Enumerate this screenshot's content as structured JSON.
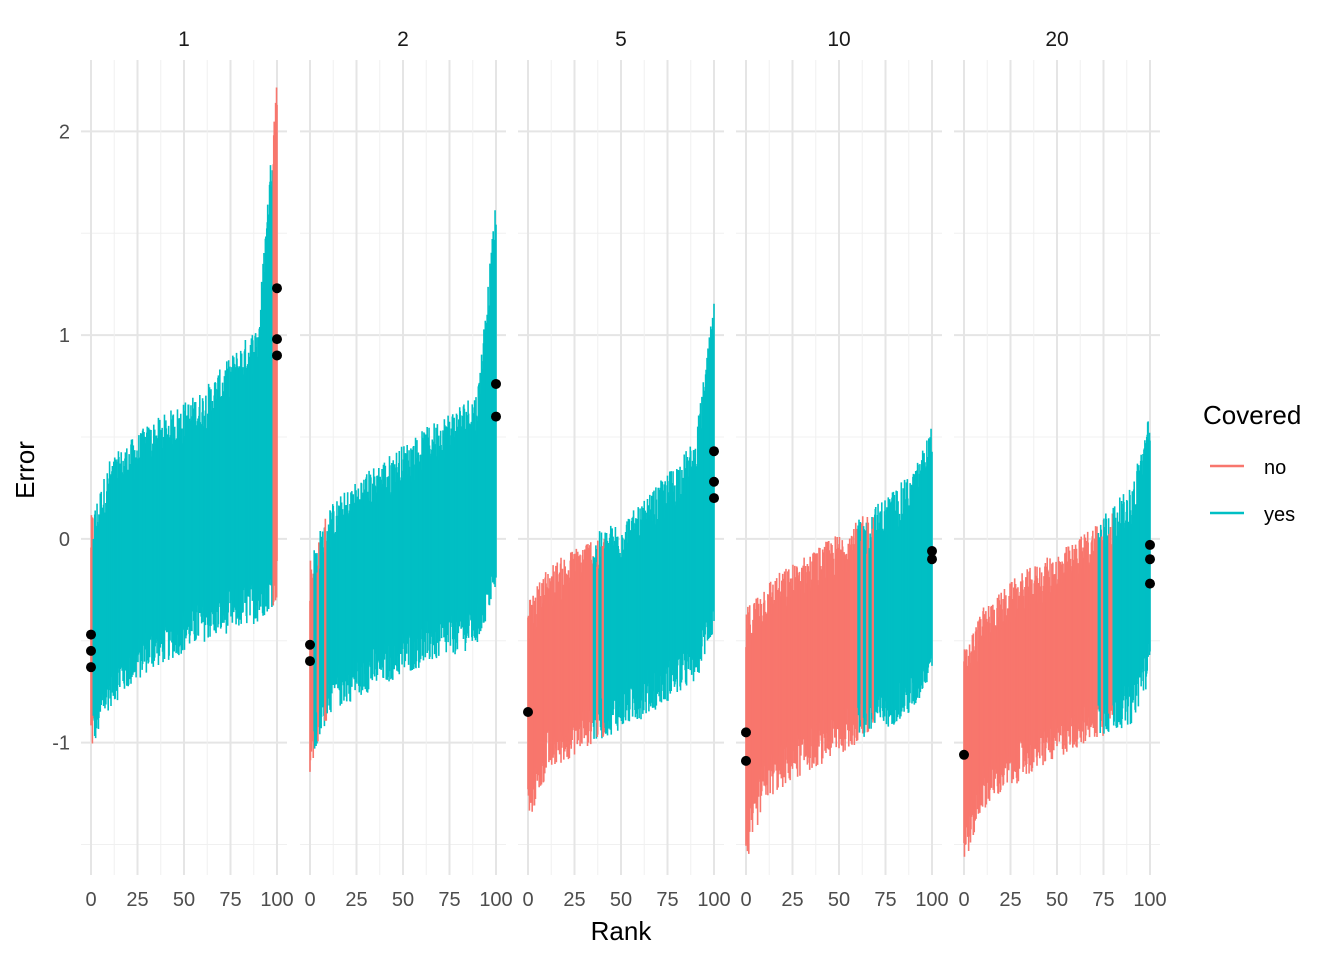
{
  "chart_data": {
    "type": "line",
    "xlabel": "Rank",
    "ylabel": "Error",
    "facets": [
      "1",
      "2",
      "5",
      "10",
      "20"
    ],
    "xlim": [
      0,
      100
    ],
    "ylim": [
      -1.65,
      2.35
    ],
    "x_ticks": [
      "0",
      "25",
      "50",
      "75",
      "100"
    ],
    "y_ticks": [
      "-1",
      "0",
      "1",
      "2"
    ],
    "grid": true,
    "legend": {
      "title": "Covered",
      "position": "right",
      "entries": [
        {
          "label": "no",
          "color": "#F8766D"
        },
        {
          "label": "yes",
          "color": "#00BFC4"
        }
      ]
    },
    "series_description": "Per-rank error intervals (lower, upper) coloured by coverage; black points mark point estimates at extreme ranks.",
    "panels": [
      {
        "facet": "1",
        "lower": [
          -0.95,
          -0.72,
          -0.55,
          -0.4,
          -0.3,
          -0.2
        ],
        "upper": [
          0.0,
          0.28,
          0.45,
          0.62,
          0.95,
          2.18
        ],
        "at_rank": [
          0,
          10,
          30,
          60,
          90,
          100
        ],
        "no_ranges": [
          [
            0,
            1
          ],
          [
            98,
            100
          ]
        ],
        "points": [
          -0.63,
          -0.55,
          -0.47,
          0.9,
          0.98,
          1.23
        ]
      },
      {
        "facet": "2",
        "lower": [
          -1.05,
          -0.75,
          -0.65,
          -0.52,
          -0.42,
          -0.15
        ],
        "upper": [
          -0.2,
          0.05,
          0.22,
          0.42,
          0.62,
          1.55
        ],
        "at_rank": [
          0,
          10,
          30,
          60,
          90,
          100
        ],
        "no_ranges": [
          [
            0,
            2
          ],
          [
            4,
            5
          ],
          [
            8,
            9
          ]
        ],
        "points": [
          -0.6,
          -0.52,
          0.6,
          0.76
        ]
      },
      {
        "facet": "5",
        "lower": [
          -1.3,
          -1.05,
          -0.92,
          -0.78,
          -0.6,
          -0.35
        ],
        "upper": [
          -0.42,
          -0.25,
          -0.12,
          0.05,
          0.38,
          1.05
        ],
        "at_rank": [
          0,
          10,
          30,
          60,
          90,
          100
        ],
        "no_ranges": [
          [
            0,
            35
          ],
          [
            37,
            38
          ],
          [
            40,
            41
          ]
        ],
        "points": [
          -0.85,
          0.2,
          0.28,
          0.43
        ]
      },
      {
        "facet": "10",
        "lower": [
          -1.5,
          -1.18,
          -1.05,
          -0.9,
          -0.75,
          -0.55
        ],
        "upper": [
          -0.45,
          -0.32,
          -0.2,
          -0.02,
          0.22,
          0.45
        ],
        "at_rank": [
          0,
          10,
          30,
          60,
          90,
          100
        ],
        "no_ranges": [
          [
            0,
            60
          ],
          [
            62,
            63
          ],
          [
            65,
            66
          ],
          [
            68,
            69
          ]
        ],
        "points": [
          -1.09,
          -0.95,
          -0.1,
          -0.06
        ]
      },
      {
        "facet": "20",
        "lower": [
          -1.5,
          -1.22,
          -1.08,
          -0.92,
          -0.8,
          -0.58
        ],
        "upper": [
          -0.65,
          -0.45,
          -0.28,
          -0.12,
          0.15,
          0.52
        ],
        "at_rank": [
          0,
          10,
          30,
          60,
          90,
          100
        ],
        "no_ranges": [
          [
            0,
            72
          ],
          [
            74,
            75
          ],
          [
            78,
            80
          ]
        ],
        "points": [
          -1.06,
          -0.22,
          -0.1,
          -0.03
        ]
      }
    ]
  }
}
